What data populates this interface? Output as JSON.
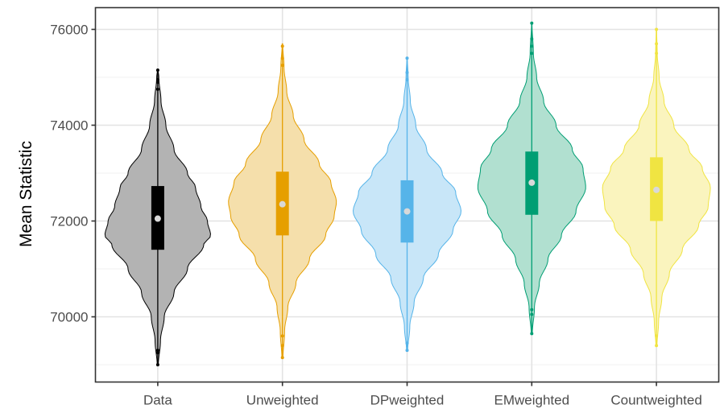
{
  "chart_data": {
    "type": "violin",
    "title": "",
    "xlabel": "",
    "ylabel": "Mean Statistic",
    "ylim": [
      68800,
      76500
    ],
    "yticks": [
      70000,
      72000,
      74000,
      76000
    ],
    "ytick_labels": [
      "70000",
      "72000",
      "74000",
      "76000"
    ],
    "grid": true,
    "legend": "none",
    "categories": [
      "Data",
      "Unweighted",
      "DPweighted",
      "EMweighted",
      "Countweighted"
    ],
    "series": [
      {
        "category": "Data",
        "color": "#000000",
        "fill": "#b3b3b3",
        "median": 72050,
        "q1": 71400,
        "q3": 72730,
        "whisker_low": 69000,
        "whisker_high": 75150,
        "outliers": [
          69000,
          69250,
          69300,
          74750,
          74900,
          74950,
          75150
        ],
        "density": [
          [
            68980,
            0.01
          ],
          [
            69500,
            0.05
          ],
          [
            70000,
            0.12
          ],
          [
            70500,
            0.3
          ],
          [
            71000,
            0.55
          ],
          [
            71500,
            0.85
          ],
          [
            71700,
            0.98
          ],
          [
            72000,
            0.92
          ],
          [
            72300,
            0.8
          ],
          [
            72700,
            0.7
          ],
          [
            73000,
            0.55
          ],
          [
            73500,
            0.3
          ],
          [
            74000,
            0.15
          ],
          [
            74500,
            0.06
          ],
          [
            75000,
            0.02
          ],
          [
            75170,
            0.005
          ]
        ]
      },
      {
        "category": "Unweighted",
        "color": "#e69f00",
        "fill": "#f5dfab",
        "median": 72350,
        "q1": 71700,
        "q3": 73030,
        "whisker_low": 69150,
        "whisker_high": 75650,
        "outliers": [
          69150,
          69400,
          69600,
          75250,
          75400,
          75650
        ],
        "density": [
          [
            69130,
            0.01
          ],
          [
            69700,
            0.04
          ],
          [
            70200,
            0.1
          ],
          [
            70700,
            0.25
          ],
          [
            71200,
            0.5
          ],
          [
            71700,
            0.8
          ],
          [
            72100,
            0.96
          ],
          [
            72400,
            1.0
          ],
          [
            72800,
            0.9
          ],
          [
            73200,
            0.68
          ],
          [
            73700,
            0.4
          ],
          [
            74200,
            0.2
          ],
          [
            74700,
            0.08
          ],
          [
            75200,
            0.03
          ],
          [
            75700,
            0.005
          ]
        ]
      },
      {
        "category": "DPweighted",
        "color": "#56b4e9",
        "fill": "#c8e6f8",
        "median": 72200,
        "q1": 71550,
        "q3": 72850,
        "whisker_low": 69300,
        "whisker_high": 75400,
        "outliers": [
          69300,
          69450,
          74950,
          75100,
          75400
        ],
        "density": [
          [
            69280,
            0.01
          ],
          [
            69800,
            0.05
          ],
          [
            70300,
            0.13
          ],
          [
            70800,
            0.3
          ],
          [
            71300,
            0.58
          ],
          [
            71800,
            0.85
          ],
          [
            72200,
            1.0
          ],
          [
            72600,
            0.9
          ],
          [
            73000,
            0.65
          ],
          [
            73500,
            0.36
          ],
          [
            74000,
            0.16
          ],
          [
            74500,
            0.06
          ],
          [
            75000,
            0.02
          ],
          [
            75420,
            0.004
          ]
        ]
      },
      {
        "category": "EMweighted",
        "color": "#009e73",
        "fill": "#b1e0d0",
        "median": 72800,
        "q1": 72130,
        "q3": 73450,
        "whisker_low": 69650,
        "whisker_high": 76130,
        "outliers": [
          69650,
          70050,
          70150,
          75500,
          75650,
          75800,
          76130
        ],
        "density": [
          [
            69640,
            0.01
          ],
          [
            70200,
            0.05
          ],
          [
            70700,
            0.14
          ],
          [
            71200,
            0.3
          ],
          [
            71700,
            0.55
          ],
          [
            72200,
            0.82
          ],
          [
            72700,
            1.0
          ],
          [
            73100,
            0.95
          ],
          [
            73500,
            0.75
          ],
          [
            74000,
            0.45
          ],
          [
            74500,
            0.22
          ],
          [
            75000,
            0.09
          ],
          [
            75500,
            0.03
          ],
          [
            76130,
            0.004
          ]
        ]
      },
      {
        "category": "Countweighted",
        "color": "#f0e442",
        "fill": "#faf4be",
        "median": 72650,
        "q1": 72000,
        "q3": 73330,
        "whisker_low": 69400,
        "whisker_high": 76000,
        "outliers": [
          69400,
          69600,
          75500,
          75700,
          76000
        ],
        "density": [
          [
            69380,
            0.01
          ],
          [
            69900,
            0.04
          ],
          [
            70400,
            0.1
          ],
          [
            70900,
            0.24
          ],
          [
            71400,
            0.48
          ],
          [
            71900,
            0.78
          ],
          [
            72300,
            0.96
          ],
          [
            72700,
            1.0
          ],
          [
            73100,
            0.85
          ],
          [
            73500,
            0.6
          ],
          [
            74000,
            0.32
          ],
          [
            74500,
            0.14
          ],
          [
            75000,
            0.05
          ],
          [
            75500,
            0.015
          ],
          [
            76000,
            0.004
          ]
        ]
      }
    ]
  }
}
